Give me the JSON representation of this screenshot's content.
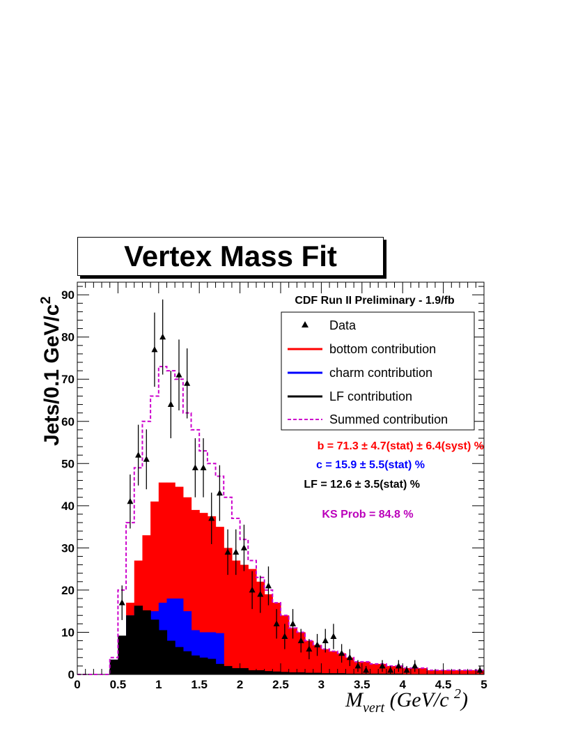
{
  "chart_data": {
    "type": "bar",
    "title": "Vertex Mass Fit",
    "subtitle": "CDF Run II Preliminary - 1.9/fb",
    "xlabel_main": "M",
    "xlabel_sub": "vert",
    "xlabel_unit_open": "(GeV/c",
    "xlabel_unit_exp": "2",
    "xlabel_unit_close": ")",
    "ylabel": "Jets/0.1 GeV/c",
    "ylabel_exp": "2",
    "xlim": [
      0,
      5
    ],
    "ylim": [
      0,
      93
    ],
    "bin_width": 0.1,
    "x_ticks": [
      0,
      0.5,
      1,
      1.5,
      2,
      2.5,
      3,
      3.5,
      4,
      4.5,
      5
    ],
    "x_tick_labels": [
      "0",
      "0.5",
      "1",
      "1.5",
      "2",
      "2.5",
      "3",
      "3.5",
      "4",
      "4.5",
      "5"
    ],
    "y_ticks": [
      0,
      10,
      20,
      30,
      40,
      50,
      60,
      70,
      80,
      90
    ],
    "y_tick_labels": [
      "0",
      "10",
      "20",
      "30",
      "40",
      "50",
      "60",
      "70",
      "80",
      "90"
    ],
    "legend": {
      "placement": "top-right",
      "entries": [
        {
          "label": "Data",
          "color": "#000000",
          "style": "marker"
        },
        {
          "label": "bottom contribution",
          "color": "#ff0000",
          "style": "line"
        },
        {
          "label": "charm contribution",
          "color": "#0000ff",
          "style": "line"
        },
        {
          "label": "LF contribution",
          "color": "#000000",
          "style": "line"
        },
        {
          "label": "Summed contribution",
          "color": "#cc00cc",
          "style": "dashed"
        }
      ]
    },
    "annotations": [
      {
        "text": "b =  71.3 ±  4.7(stat) ± 6.4(syst) %",
        "color": "#ff0000"
      },
      {
        "text": "c =  15.9 ±  5.5(stat) %",
        "color": "#0000ff"
      },
      {
        "text": "LF =  12.6 ±  3.5(stat) %",
        "color": "#000000"
      },
      {
        "text": "KS Prob =  84.8 %",
        "color": "#bb00bb"
      }
    ],
    "series": [
      {
        "name": "Summed contribution",
        "color": "#cc00cc",
        "values": [
          0,
          0,
          0,
          0,
          4,
          20,
          36,
          49,
          60,
          66,
          73,
          72,
          70,
          62,
          58,
          53,
          50,
          47,
          42,
          37,
          32,
          27,
          23,
          20,
          17,
          14,
          11,
          10,
          8,
          7,
          6,
          5.5,
          5,
          4,
          3,
          3,
          2.5,
          2.5,
          2,
          2,
          1.5,
          1.5,
          1.5,
          1,
          1,
          1,
          1,
          1,
          1,
          1
        ]
      },
      {
        "name": "bottom contribution",
        "color": "#ff0000",
        "values": [
          0,
          0,
          0,
          0,
          3.5,
          9,
          17,
          27,
          33,
          41,
          45.5,
          45.5,
          44.5,
          42,
          39,
          38.3,
          37.5,
          35,
          30,
          27,
          26,
          25,
          22,
          19,
          17,
          14,
          11,
          10,
          8,
          7,
          6,
          5.5,
          5,
          4,
          3,
          3,
          2.5,
          2.5,
          2,
          2,
          1.5,
          1.5,
          1.5,
          1,
          1,
          1,
          1,
          1,
          1,
          1
        ]
      },
      {
        "name": "charm contribution",
        "color": "#0000ff",
        "values": [
          0,
          0,
          0,
          0,
          3.5,
          9,
          14,
          16,
          15,
          15,
          17,
          18,
          18,
          15,
          10.5,
          10,
          10,
          9.8,
          0.5,
          0.5,
          0.5,
          0.3,
          0.3,
          0.3,
          0.2,
          0.2,
          0.2,
          0.2,
          0,
          0,
          0,
          0,
          0,
          0,
          0,
          0,
          0,
          0,
          0,
          0,
          0,
          0,
          0,
          0,
          0,
          0,
          0,
          0,
          0,
          0
        ]
      },
      {
        "name": "LF contribution",
        "color": "#000000",
        "values": [
          0,
          0,
          0,
          0,
          3.5,
          9.2,
          14,
          16.3,
          15.2,
          13,
          10.5,
          8,
          6.5,
          5.5,
          4.5,
          4,
          3.7,
          2.5,
          2,
          1.5,
          1.5,
          1,
          1,
          0.8,
          0.7,
          0.6,
          0.5,
          0.5,
          0.4,
          0.4,
          0.3,
          0.3,
          0.3,
          0.2,
          0.2,
          0.2,
          0.2,
          0.2,
          0.2,
          0.2,
          0.1,
          0.1,
          0.1,
          0.1,
          0.1,
          0.1,
          0.1,
          0.1,
          0.1,
          0.1
        ]
      }
    ],
    "data_points": [
      {
        "x": 0.55,
        "y": 17,
        "err": 4.1
      },
      {
        "x": 0.65,
        "y": 41,
        "err": 6.4
      },
      {
        "x": 0.75,
        "y": 52,
        "err": 7.2
      },
      {
        "x": 0.85,
        "y": 51,
        "err": 7.1
      },
      {
        "x": 0.95,
        "y": 77,
        "err": 8.8
      },
      {
        "x": 1.05,
        "y": 80,
        "err": 8.9
      },
      {
        "x": 1.15,
        "y": 64,
        "err": 8.0
      },
      {
        "x": 1.25,
        "y": 71,
        "err": 8.4
      },
      {
        "x": 1.35,
        "y": 69,
        "err": 8.3
      },
      {
        "x": 1.45,
        "y": 49,
        "err": 7.0
      },
      {
        "x": 1.55,
        "y": 49,
        "err": 7.0
      },
      {
        "x": 1.65,
        "y": 37,
        "err": 6.1
      },
      {
        "x": 1.75,
        "y": 43,
        "err": 6.6
      },
      {
        "x": 1.85,
        "y": 29,
        "err": 5.4
      },
      {
        "x": 1.95,
        "y": 29,
        "err": 5.4
      },
      {
        "x": 2.05,
        "y": 30,
        "err": 5.5
      },
      {
        "x": 2.15,
        "y": 20,
        "err": 4.5
      },
      {
        "x": 2.25,
        "y": 19,
        "err": 4.4
      },
      {
        "x": 2.35,
        "y": 21,
        "err": 4.6
      },
      {
        "x": 2.45,
        "y": 12,
        "err": 3.5
      },
      {
        "x": 2.55,
        "y": 9,
        "err": 3.0
      },
      {
        "x": 2.65,
        "y": 12,
        "err": 3.5
      },
      {
        "x": 2.75,
        "y": 8,
        "err": 2.8
      },
      {
        "x": 2.85,
        "y": 6,
        "err": 2.4
      },
      {
        "x": 2.95,
        "y": 7,
        "err": 2.6
      },
      {
        "x": 3.05,
        "y": 8,
        "err": 2.8
      },
      {
        "x": 3.15,
        "y": 9,
        "err": 3.0
      },
      {
        "x": 3.25,
        "y": 5,
        "err": 2.2
      },
      {
        "x": 3.35,
        "y": 4,
        "err": 2.0
      },
      {
        "x": 3.45,
        "y": 2,
        "err": 1.4
      },
      {
        "x": 3.55,
        "y": 1,
        "err": 1.0
      },
      {
        "x": 3.75,
        "y": 2,
        "err": 1.4
      },
      {
        "x": 3.85,
        "y": 1,
        "err": 1.0
      },
      {
        "x": 3.95,
        "y": 2,
        "err": 1.4
      },
      {
        "x": 4.05,
        "y": 1,
        "err": 1.0
      },
      {
        "x": 4.15,
        "y": 2,
        "err": 1.4
      },
      {
        "x": 4.95,
        "y": 1,
        "err": 1.0
      }
    ]
  }
}
